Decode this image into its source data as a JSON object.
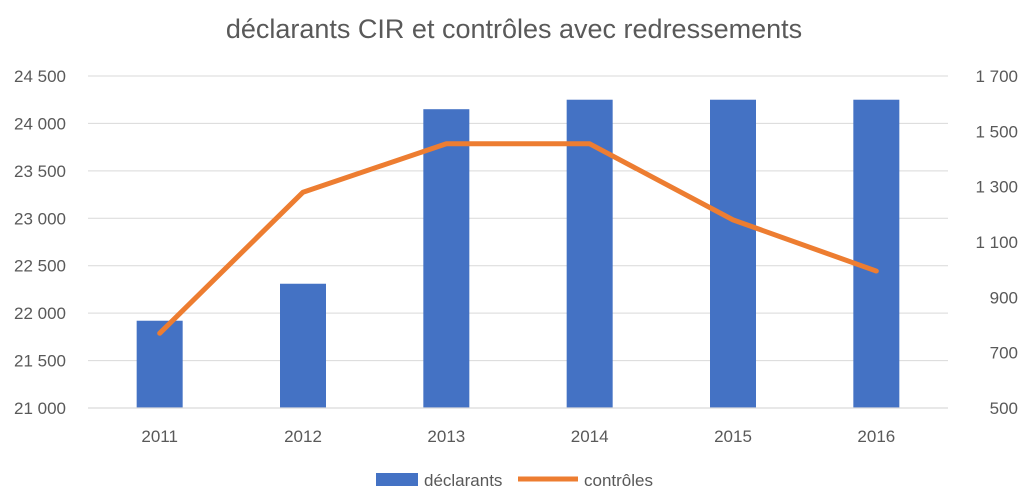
{
  "chart_data": {
    "type": "bar",
    "title": "déclarants CIR et contrôles avec redressements",
    "categories": [
      "2011",
      "2012",
      "2013",
      "2014",
      "2015",
      "2016"
    ],
    "series": [
      {
        "name": "déclarants",
        "type": "bar",
        "axis": "left",
        "color": "#4472C4",
        "values": [
          21920,
          22310,
          24150,
          24250,
          24250,
          24250
        ]
      },
      {
        "name": "contrôles",
        "type": "line",
        "axis": "right",
        "color": "#ED7D31",
        "values": [
          770,
          1280,
          1455,
          1455,
          1180,
          995
        ]
      }
    ],
    "y_left": {
      "min": 21000,
      "max": 24500,
      "step": 500,
      "tick_labels": [
        "21 000",
        "21 500",
        "22 000",
        "22 500",
        "23 000",
        "23 500",
        "24 000",
        "24 500"
      ]
    },
    "y_right": {
      "min": 500,
      "max": 1700,
      "step": 200,
      "tick_labels": [
        "500",
        "700",
        "900",
        "1 100",
        "1 300",
        "1 500",
        "1 700"
      ]
    },
    "grid": true,
    "legend_position": "bottom",
    "colors": {
      "grid": "#D9D9D9",
      "text": "#595959"
    }
  }
}
